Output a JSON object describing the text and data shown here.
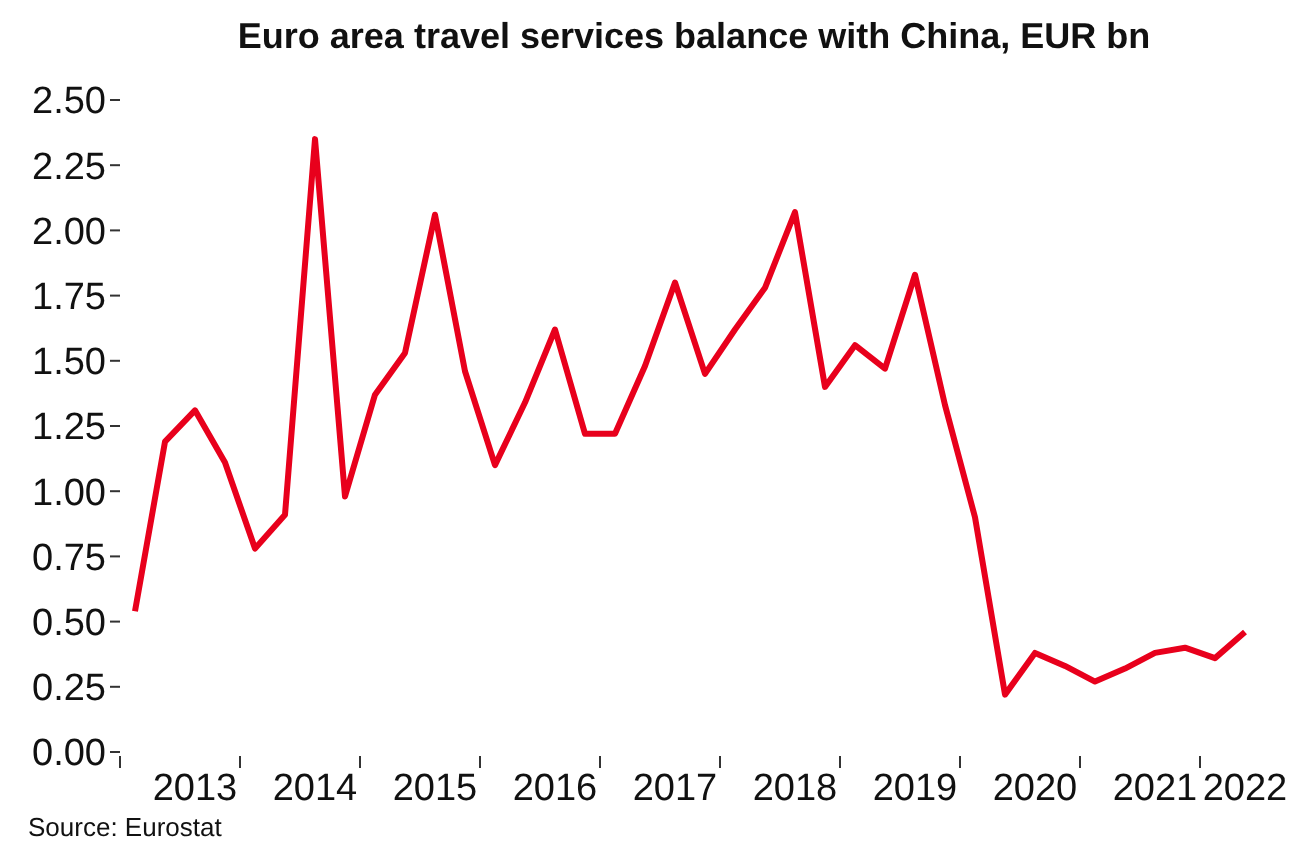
{
  "chart_data": {
    "type": "line",
    "title": "Euro area travel services balance with China, EUR bn",
    "annotations": [
      "Source: Eurostat"
    ],
    "categories": [
      null,
      null,
      "2013",
      null,
      null,
      null,
      "2014",
      null,
      null,
      null,
      "2015",
      null,
      null,
      null,
      "2016",
      null,
      null,
      null,
      "2017",
      null,
      null,
      null,
      "2018",
      null,
      null,
      null,
      "2019",
      null,
      null,
      null,
      "2020",
      null,
      null,
      null,
      "2021",
      null,
      null,
      "2022"
    ],
    "series": [
      {
        "color": "#e8001c",
        "values": [
          0.54,
          1.19,
          1.31,
          1.11,
          0.78,
          0.91,
          2.35,
          0.98,
          1.37,
          1.53,
          2.06,
          1.46,
          1.1,
          1.34,
          1.62,
          1.22,
          1.22,
          1.48,
          1.8,
          1.45,
          1.62,
          1.78,
          2.07,
          1.4,
          1.56,
          1.47,
          1.83,
          1.33,
          0.9,
          0.22,
          0.38,
          0.33,
          0.27,
          0.32,
          0.38,
          0.4,
          0.36,
          0.46
        ]
      }
    ],
    "ylim": [
      0,
      2.5
    ],
    "yticks": [
      {
        "value": 0,
        "label": "0.00"
      },
      {
        "value": 0.25,
        "label": "0.25"
      },
      {
        "value": 0.5,
        "label": "0.50"
      },
      {
        "value": 0.75,
        "label": "0.75"
      },
      {
        "value": 1,
        "label": "1.00"
      },
      {
        "value": 1.25,
        "label": "1.25"
      },
      {
        "value": 1.5,
        "label": "1.50"
      },
      {
        "value": 1.75,
        "label": "1.75"
      },
      {
        "value": 2,
        "label": "2.00"
      },
      {
        "value": 2.25,
        "label": "2.25"
      },
      {
        "value": 2.5,
        "label": "2.50"
      }
    ]
  }
}
